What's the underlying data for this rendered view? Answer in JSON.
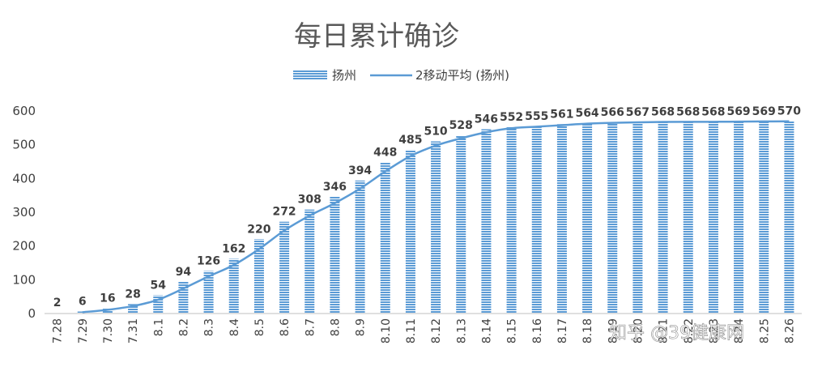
{
  "chart_data": {
    "type": "bar",
    "title": "每日累计确诊",
    "categories": [
      "7.28",
      "7.29",
      "7.30",
      "7.31",
      "8.1",
      "8.2",
      "8.3",
      "8.4",
      "8.5",
      "8.6",
      "8.7",
      "8.8",
      "8.9",
      "8.10",
      "8.11",
      "8.12",
      "8.13",
      "8.14",
      "8.15",
      "8.16",
      "8.17",
      "8.18",
      "8.19",
      "8.20",
      "8.21",
      "8.22",
      "8.23",
      "8.24",
      "8.25",
      "8.26"
    ],
    "series": [
      {
        "name": "扬州",
        "type": "bar",
        "color": "#5b9bd5",
        "values": [
          2,
          6,
          16,
          28,
          54,
          94,
          126,
          162,
          220,
          272,
          308,
          346,
          394,
          448,
          485,
          510,
          528,
          546,
          552,
          555,
          561,
          564,
          566,
          567,
          568,
          568,
          568,
          569,
          569,
          570
        ]
      },
      {
        "name": "2移动平均 (扬州)",
        "type": "line",
        "color": "#5b9bd5"
      }
    ],
    "ylim": [
      0,
      600
    ],
    "yticks": [
      0,
      100,
      200,
      300,
      400,
      500,
      600
    ],
    "legend_position": "top-center",
    "grid": false,
    "data_labels": true,
    "watermark": "知乎 @39健康网"
  }
}
